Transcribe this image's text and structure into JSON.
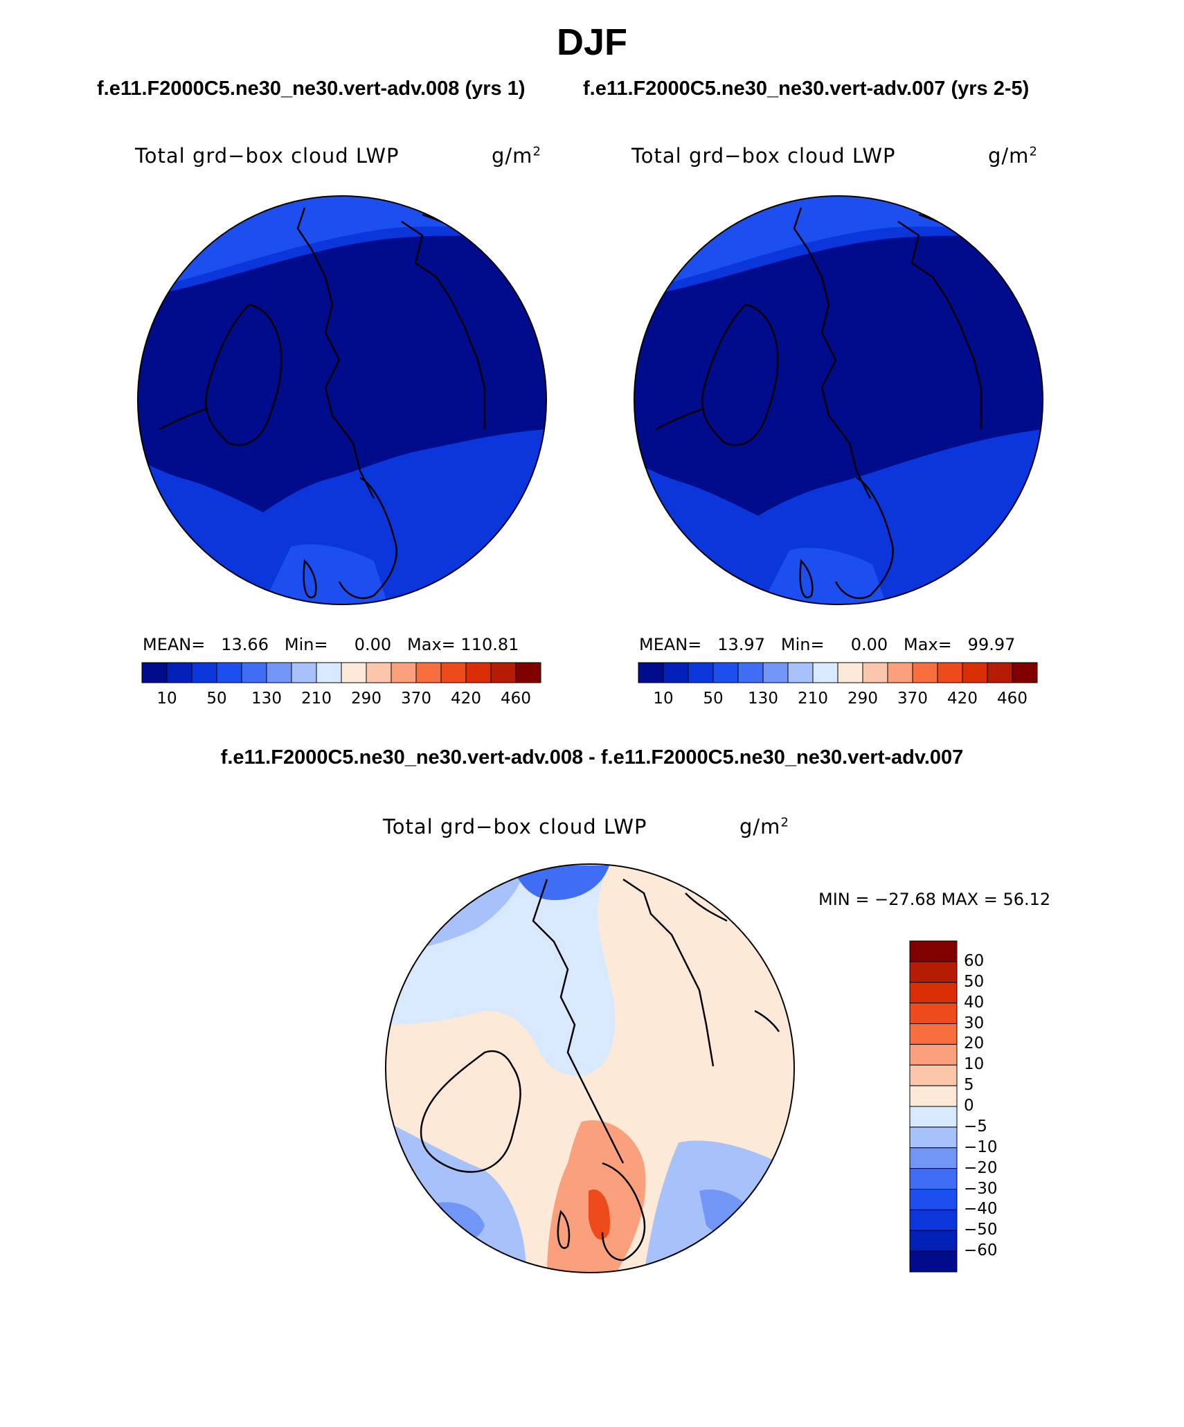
{
  "title": "DJF",
  "captions": {
    "top_left": "f.e11.F2000C5.ne30_ne30.vert-adv.008 (yrs 1)",
    "top_right": "f.e11.F2000C5.ne30_ne30.vert-adv.007 (yrs 2-5)",
    "bottom": "f.e11.F2000C5.ne30_ne30.vert-adv.008 - f.e11.F2000C5.ne30_ne30.vert-adv.007"
  },
  "panels": [
    {
      "variable": "Total grd−box cloud LWP",
      "units_base": "g/m",
      "units_exp": "2",
      "mean_label": "MEAN=",
      "mean": "13.66",
      "min_label": "Min=",
      "min": "0.00",
      "max_label": "Max=",
      "max": "110.81"
    },
    {
      "variable": "Total grd−box cloud LWP",
      "units_base": "g/m",
      "units_exp": "2",
      "mean_label": "MEAN=",
      "mean": "13.97",
      "min_label": "Min=",
      "min": "0.00",
      "max_label": "Max=",
      "max": "99.97"
    }
  ],
  "diff_panel": {
    "variable": "Total grd−box cloud LWP",
    "units_base": "g/m",
    "units_exp": "2",
    "range_text": "MIN = −27.68 MAX =   56.12"
  },
  "abs_colorbar": {
    "colors": [
      "#000c8c",
      "#0020b8",
      "#0a36dc",
      "#1c4ef0",
      "#3f6ef5",
      "#7196f5",
      "#a7c2fa",
      "#d8e8fd",
      "#fde9d8",
      "#fcc6aa",
      "#fba07d",
      "#f76f3e",
      "#ee4a1c",
      "#db2e06",
      "#b61c04",
      "#800000"
    ],
    "ticks": [
      "10",
      "50",
      "130",
      "210",
      "290",
      "370",
      "420",
      "460"
    ]
  },
  "diff_colorbar": {
    "colors": [
      "#800000",
      "#b61c04",
      "#db2e06",
      "#ee4a1c",
      "#f76f3e",
      "#fba07d",
      "#fcc6aa",
      "#fde9d8",
      "#d8e8fd",
      "#a7c2fa",
      "#7196f5",
      "#3f6ef5",
      "#1c4ef0",
      "#0a36dc",
      "#0020b8",
      "#000c8c"
    ],
    "ticks": [
      "60",
      "50",
      "40",
      "30",
      "20",
      "10",
      "5",
      "0",
      "−5",
      "−10",
      "−20",
      "−30",
      "−40",
      "−50",
      "−60"
    ]
  },
  "colors": {
    "deep_blue": "#000c8c",
    "mid_blue": "#0a36dc",
    "bright_blue": "#1c4ef0",
    "light_blue": "#d8e8fd",
    "pale_orange": "#fde9d8",
    "orange": "#fba07d",
    "red": "#ee4a1c"
  }
}
